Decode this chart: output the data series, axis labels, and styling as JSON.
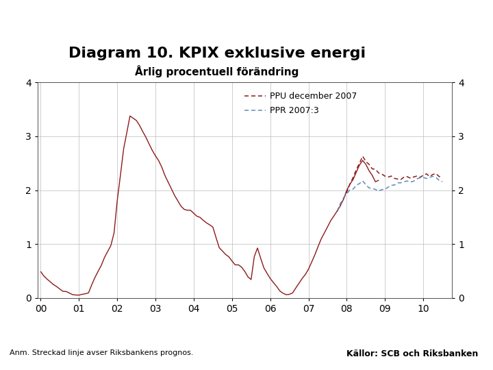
{
  "title": "Diagram 10. KPIX exklusive energi",
  "subtitle": "Årlig procentuell förändring",
  "footnote": "Anm. Streckad linje avser Riksbankens prognos.",
  "source": "Källor: SCB och Riksbanken",
  "ylim": [
    0,
    4
  ],
  "yticks": [
    0,
    1,
    2,
    3,
    4
  ],
  "xtick_labels": [
    "00",
    "01",
    "02",
    "03",
    "04",
    "05",
    "06",
    "07",
    "08",
    "09",
    "10"
  ],
  "legend_entries": [
    "PPU december 2007",
    "PPR 2007:3"
  ],
  "solid_color": "#8B1A1A",
  "ppu_color": "#8B1A1A",
  "ppr_color": "#5B8DB8",
  "background_color": "#FFFFFF",
  "footer_bar_color": "#1F3864",
  "grid_color": "#BBBBBB",
  "title_fontsize": 16,
  "subtitle_fontsize": 11,
  "axis_fontsize": 10
}
